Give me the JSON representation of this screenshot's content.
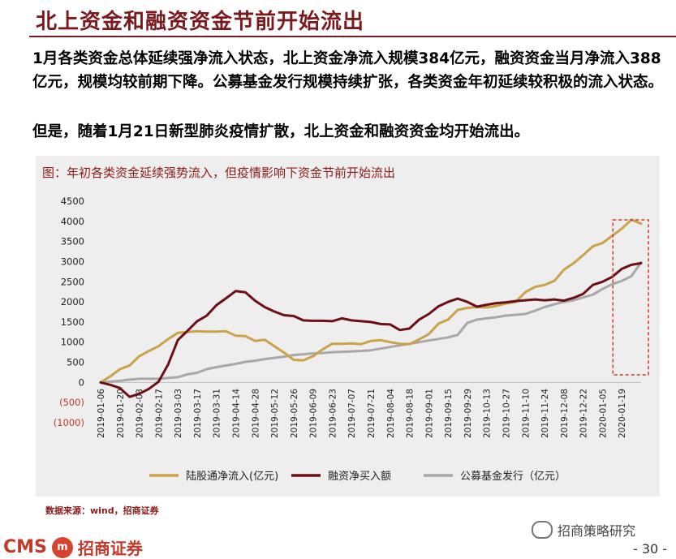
{
  "header": {
    "title": "北上资金和融资资金节前开始流出"
  },
  "body": {
    "paragraph1": "1月各类资金总体延续强净流入状态，北上资金净流入规模384亿元，融资资金当月净流入388亿元，规模均较前期下降。公募基金发行规模持续扩张，各类资金年初延续较积极的流入状态。",
    "paragraph2": "但是，随着1月21日新型肺炎疫情扩散，北上资金和融资资金均开始流出。"
  },
  "chart_title": "图：年初各类资金延续强势流入，但疫情影响下资金节前开始流出",
  "source": "数据来源：wind，招商证券",
  "footer": {
    "logo_text": "CMS",
    "logo_mark": "m",
    "logo_cn": "招商证券",
    "wechat": "招商策略研究",
    "page": "- 30 -"
  },
  "chart_data": {
    "type": "line",
    "ylim": [
      -1000,
      4500
    ],
    "yticks": [
      "4500",
      "4000",
      "3500",
      "3000",
      "2500",
      "2000",
      "1500",
      "1000",
      "500",
      "0",
      "(500)",
      "(1000)"
    ],
    "ytick_values": [
      4500,
      4000,
      3500,
      3000,
      2500,
      2000,
      1500,
      1000,
      500,
      0,
      -500,
      -1000
    ],
    "x_tick_labels": [
      "2019-01-06",
      "2019-01-20",
      "2019-02-03",
      "2019-02-17",
      "2019-03-03",
      "2019-03-17",
      "2019-03-31",
      "2019-04-14",
      "2019-04-28",
      "2019-05-12",
      "2019-05-26",
      "2019-06-09",
      "2019-06-23",
      "2019-07-07",
      "2019-07-21",
      "2019-08-04",
      "2019-08-18",
      "2019-09-01",
      "2019-09-15",
      "2019-09-29",
      "2019-10-13",
      "2019-10-27",
      "2019-11-10",
      "2019-11-24",
      "2019-12-08",
      "2019-12-22",
      "2020-01-05",
      "2020-01-19"
    ],
    "x_weeks": 57,
    "colors": {
      "north": "#c9a24a",
      "margin": "#6b0f16",
      "fund": "#a8a8a8",
      "highlight_box": "#d9342b"
    },
    "highlight_weeks": [
      54,
      57
    ],
    "series": [
      {
        "name": "陆股通净流入(亿元)",
        "color": "#c9a24a",
        "values": [
          0,
          150,
          330,
          420,
          650,
          780,
          900,
          1080,
          1230,
          1250,
          1270,
          1260,
          1260,
          1270,
          1160,
          1150,
          1030,
          1060,
          900,
          740,
          560,
          550,
          650,
          820,
          960,
          960,
          970,
          950,
          1030,
          1050,
          1000,
          960,
          950,
          1070,
          1200,
          1460,
          1560,
          1800,
          1850,
          1870,
          1860,
          1900,
          1960,
          2000,
          2240,
          2370,
          2420,
          2520,
          2800,
          2960,
          3160,
          3380,
          3460,
          3640,
          3820,
          4040,
          3940
        ]
      },
      {
        "name": "融资净买入额",
        "color": "#6b0f16",
        "values": [
          0,
          -60,
          -140,
          -360,
          -280,
          -160,
          20,
          450,
          1050,
          1280,
          1520,
          1660,
          1920,
          2090,
          2270,
          2240,
          2030,
          1870,
          1760,
          1670,
          1650,
          1540,
          1530,
          1530,
          1520,
          1590,
          1540,
          1520,
          1500,
          1450,
          1440,
          1300,
          1340,
          1560,
          1700,
          1890,
          2000,
          2080,
          2000,
          1880,
          1930,
          1970,
          1990,
          2020,
          2040,
          2060,
          2040,
          2060,
          2030,
          2100,
          2200,
          2420,
          2500,
          2620,
          2820,
          2920,
          2960
        ]
      },
      {
        "name": "公募基金发行（亿元）",
        "color": "#a8a8a8",
        "values": [
          0,
          20,
          40,
          70,
          90,
          90,
          90,
          110,
          130,
          200,
          240,
          330,
          380,
          420,
          460,
          510,
          540,
          580,
          610,
          640,
          680,
          700,
          720,
          730,
          750,
          760,
          770,
          780,
          800,
          840,
          880,
          920,
          960,
          1000,
          1040,
          1080,
          1120,
          1180,
          1480,
          1560,
          1590,
          1620,
          1660,
          1680,
          1700,
          1780,
          1870,
          1940,
          2000,
          2040,
          2110,
          2180,
          2320,
          2440,
          2520,
          2640,
          2980
        ]
      }
    ]
  }
}
